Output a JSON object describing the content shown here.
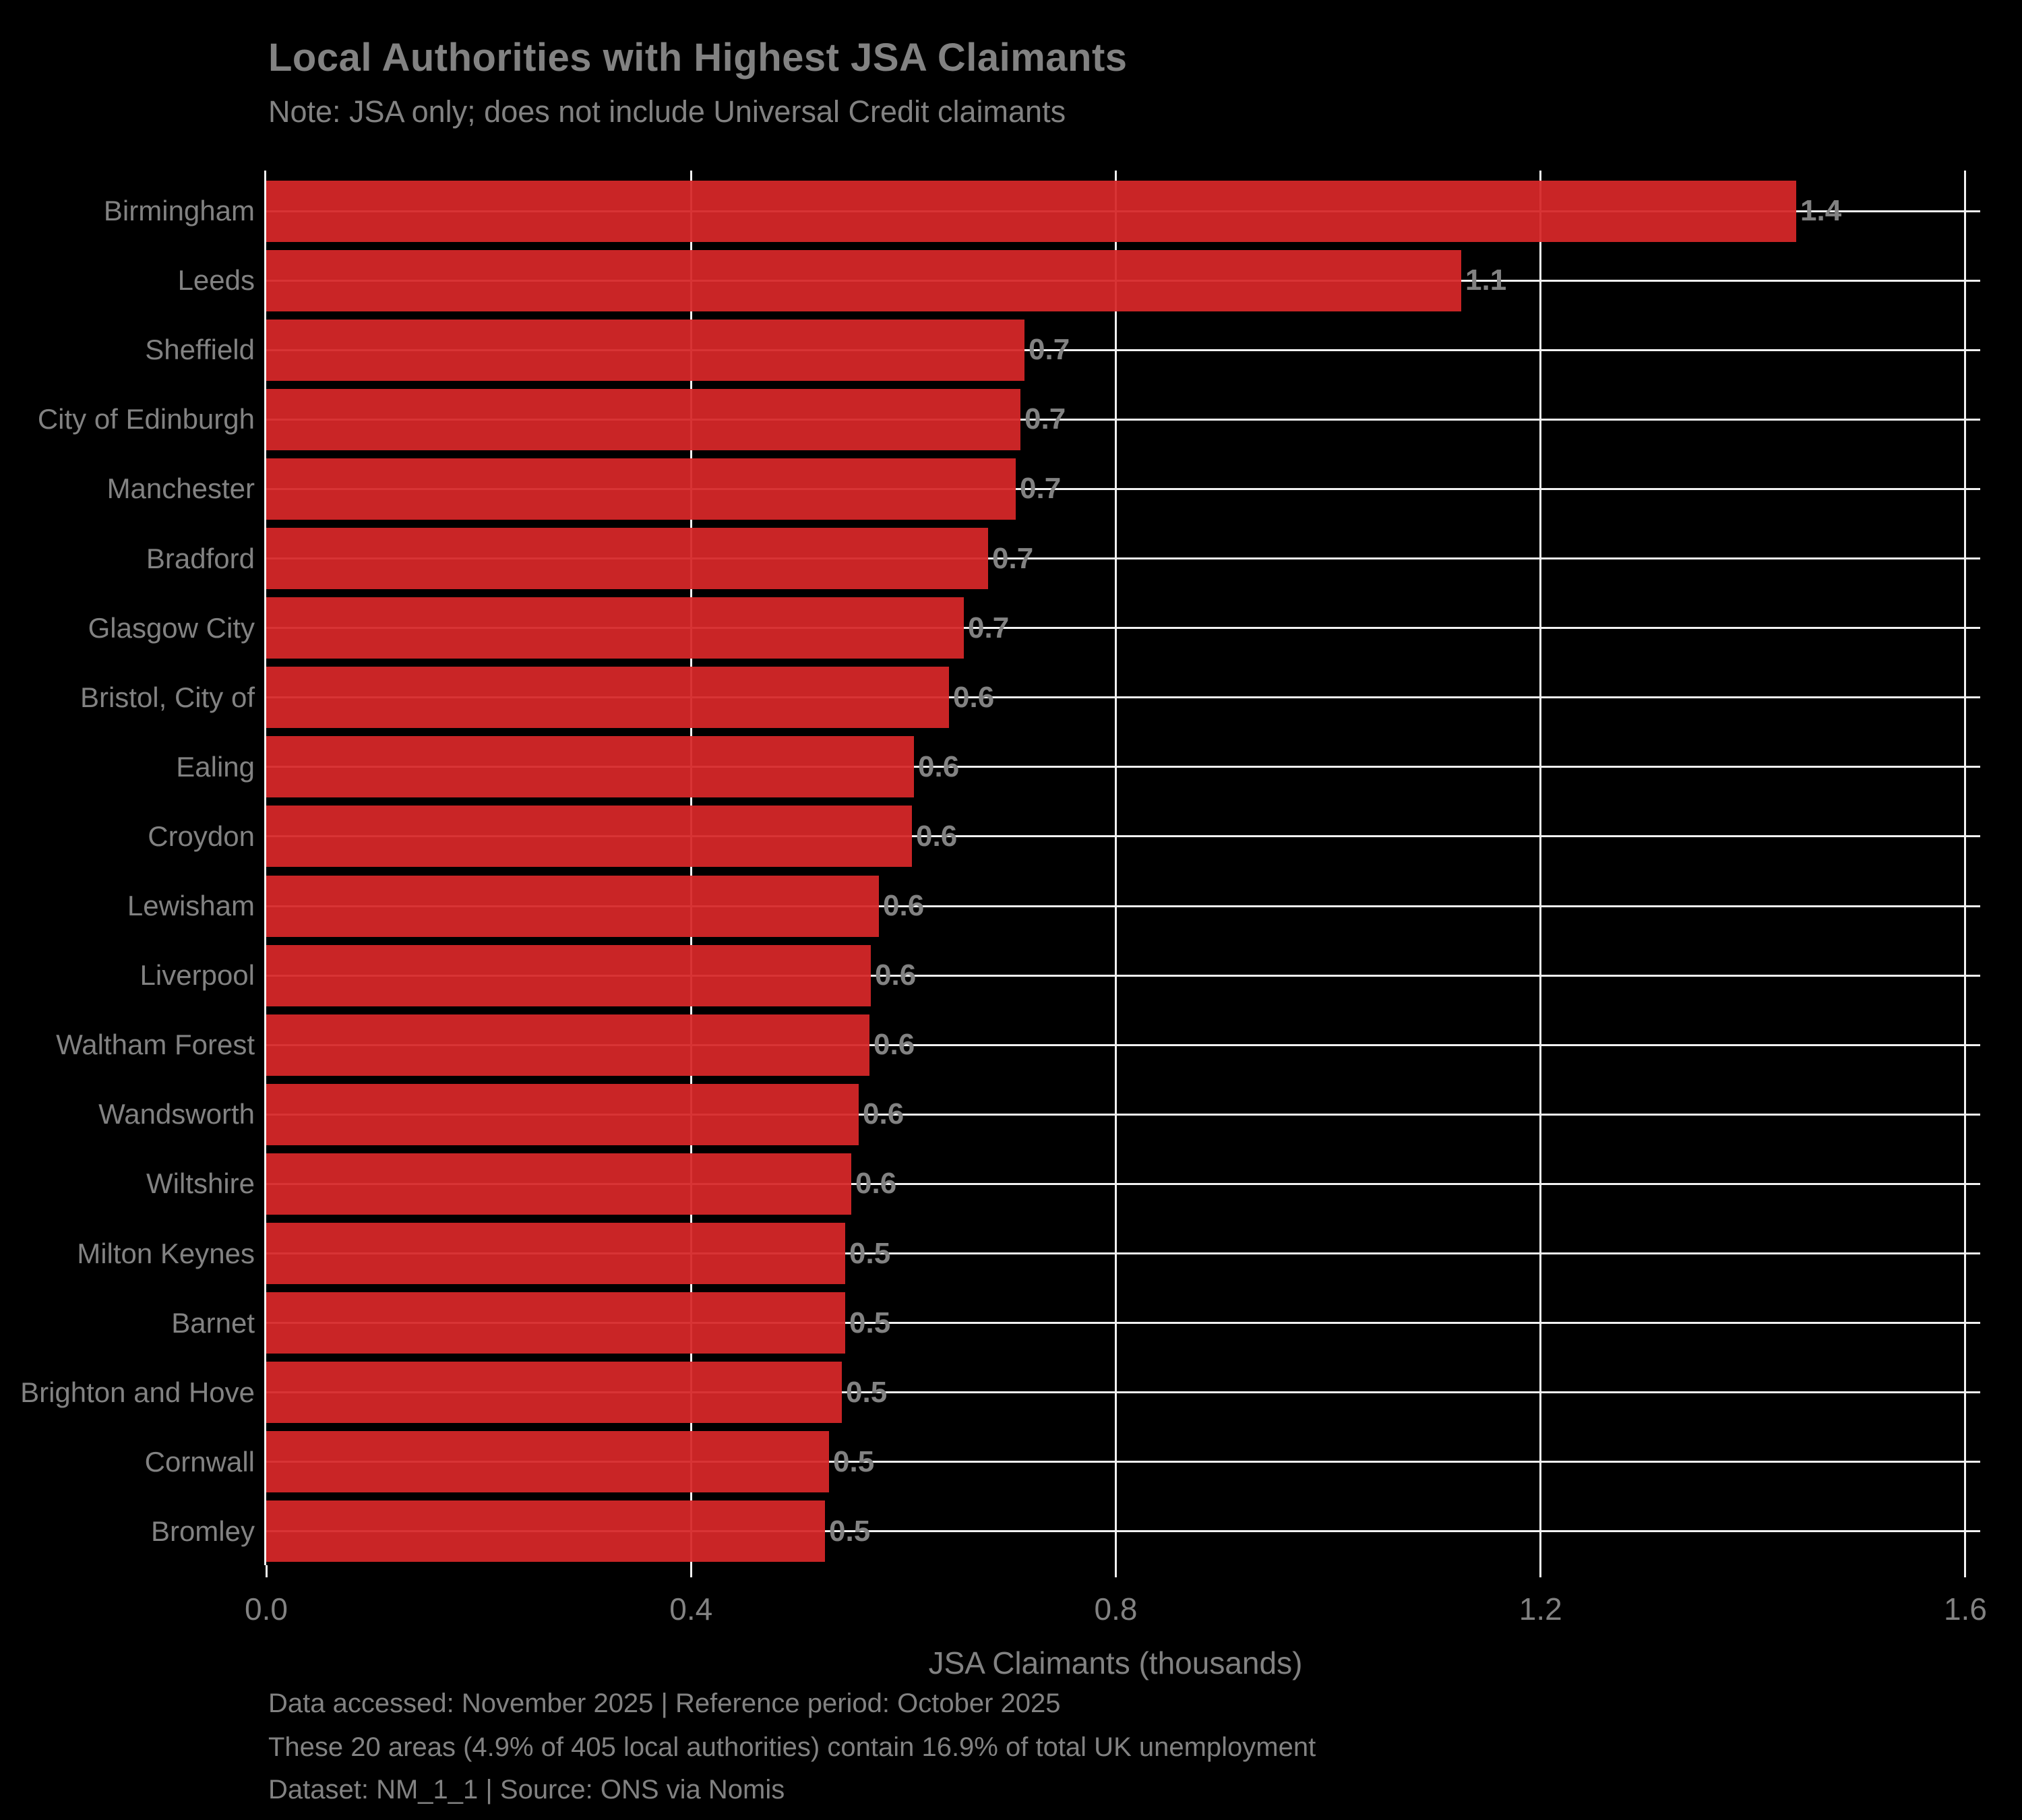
{
  "header": {
    "title": "Local Authorities with Highest JSA Claimants",
    "subtitle": "Note: JSA only; does not include Universal Credit claimants"
  },
  "chart_data": {
    "type": "bar",
    "orientation": "horizontal",
    "title": "Local Authorities with Highest JSA Claimants",
    "subtitle": "Note: JSA only; does not include Universal Credit claimants",
    "xlabel": "JSA Claimants (thousands)",
    "ylabel": "",
    "xlim": [
      0,
      1.614
    ],
    "grid": true,
    "categories": [
      "Birmingham",
      "Leeds",
      "Sheffield",
      "City of Edinburgh",
      "Manchester",
      "Bradford",
      "Glasgow City",
      "Bristol, City of",
      "Ealing",
      "Croydon",
      "Lewisham",
      "Liverpool",
      "Waltham Forest",
      "Wandsworth",
      "Wiltshire",
      "Milton Keynes",
      "Barnet",
      "Brighton and Hove",
      "Cornwall",
      "Bromley"
    ],
    "values": [
      1.441,
      1.125,
      0.714,
      0.71,
      0.706,
      0.68,
      0.657,
      0.643,
      0.61,
      0.608,
      0.577,
      0.569,
      0.568,
      0.558,
      0.551,
      0.545,
      0.545,
      0.542,
      0.53,
      0.526
    ],
    "value_labels": [
      "1.4",
      "1.1",
      "0.7",
      "0.7",
      "0.7",
      "0.7",
      "0.7",
      "0.6",
      "0.6",
      "0.6",
      "0.6",
      "0.6",
      "0.6",
      "0.6",
      "0.6",
      "0.5",
      "0.5",
      "0.5",
      "0.5",
      "0.5"
    ],
    "x_ticks": [
      {
        "value": 0.0,
        "label": "0.0"
      },
      {
        "value": 0.4,
        "label": "0.4"
      },
      {
        "value": 0.8,
        "label": "0.8"
      },
      {
        "value": 1.2,
        "label": "1.2"
      },
      {
        "value": 1.6,
        "label": "1.6"
      }
    ]
  },
  "axis": {
    "x_label": "JSA Claimants (thousands)"
  },
  "footer": {
    "line1": "Data accessed: November 2025 | Reference period: October 2025",
    "line2": "These 20 areas (4.9% of 405 local authorities) contain 16.9% of total UK unemployment",
    "line3": "Dataset: NM_1_1 | Source: ONS via Nomis"
  },
  "colors": {
    "background": "#000000",
    "bar": "#d62728",
    "grid": "#f2f2f2",
    "text": "#828282"
  }
}
